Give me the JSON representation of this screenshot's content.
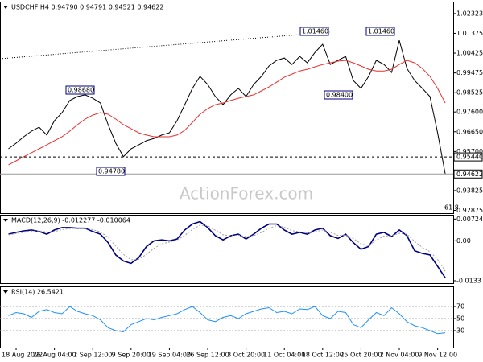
{
  "chart_data": [
    {
      "type": "line",
      "title": "USDCHF,H4 0.94790 0.94791 0.94521 0.94622",
      "ylim": [
        0.9274,
        1.0286
      ],
      "yticks": [
        1.02323,
        1.01375,
        1.00425,
        0.99475,
        0.98525,
        {
          "value": 0.976,
          "label": "0.97600"
        },
        {
          "value": 0.9665,
          "label": "0.96650"
        },
        {
          "value": 0.957,
          "label": "0.95700"
        },
        0.93825,
        0.92875
      ],
      "price_lines": [
        {
          "value": 0.9544,
          "label": "0.95440"
        },
        {
          "value": 0.94622,
          "label": "0.94622"
        }
      ],
      "annotations": [
        "1.01460",
        "1.01460",
        "0.98680",
        "0.98400",
        "0.94780",
        "61.8",
        "ActionForex.com"
      ],
      "series": [
        {
          "color": "#000000",
          "values": [
            0.9583,
            0.961,
            0.9641,
            0.9668,
            0.9687,
            0.9649,
            0.9718,
            0.9757,
            0.9815,
            0.9834,
            0.9842,
            0.9826,
            0.9803,
            0.9699,
            0.961,
            0.9545,
            0.9583,
            0.9602,
            0.9622,
            0.9633,
            0.9649,
            0.966,
            0.9718,
            0.9795,
            0.9873,
            0.9931,
            0.9892,
            0.9834,
            0.9795,
            0.9842,
            0.9873,
            0.9834,
            0.9892,
            0.9931,
            0.9981,
            1.0008,
            1.0019,
            0.9988,
            1.0027,
            0.9996,
            1.0046,
            1.0085,
            0.9988,
            1.0008,
            1.0027,
            0.9911,
            0.9873,
            0.9931,
            1.0008,
            0.9988,
            0.995,
            1.0104,
            0.9969,
            0.9911,
            0.9873,
            0.9834,
            0.966,
            0.9462
          ]
        },
        {
          "color": "#e8302f",
          "values": [
            0.9506,
            0.9525,
            0.9545,
            0.9564,
            0.9583,
            0.9602,
            0.9622,
            0.9641,
            0.9668,
            0.9699,
            0.9726,
            0.9745,
            0.9757,
            0.9749,
            0.9726,
            0.9699,
            0.968,
            0.966,
            0.9649,
            0.9641,
            0.9641,
            0.9641,
            0.9649,
            0.9672,
            0.971,
            0.9749,
            0.9776,
            0.9795,
            0.9803,
            0.9815,
            0.9826,
            0.9834,
            0.9842,
            0.9861,
            0.988,
            0.9903,
            0.9927,
            0.9942,
            0.9957,
            0.9965,
            0.9977,
            0.9988,
            0.9996,
            1.0004,
            1.0008,
            0.9996,
            0.9981,
            0.9965,
            0.9957,
            0.9957,
            0.9965,
            0.9988,
            1.0008,
            0.9996,
            0.9969,
            0.9931,
            0.9873,
            0.9803
          ]
        }
      ]
    },
    {
      "type": "line",
      "title": "MACD(12,26,9) -0.012277 -0.010064",
      "ylim": [
        -0.0141,
        0.0084
      ],
      "yticks": [
        0.00724,
        {
          "value": 0,
          "label": "0.00"
        },
        -0.0133
      ],
      "series": [
        {
          "color": "#000080",
          "values": [
            0.0022,
            0.0028,
            0.0033,
            0.0036,
            0.0031,
            0.0022,
            0.0036,
            0.0044,
            0.0044,
            0.0042,
            0.0042,
            0.0031,
            0.0022,
            -0.0006,
            -0.0047,
            -0.0067,
            -0.0075,
            -0.0056,
            -0.0019,
            0,
            0.0003,
            0,
            0.0006,
            0.0036,
            0.0056,
            0.0064,
            0.0044,
            0.0017,
            0.0003,
            0.0017,
            0.0022,
            0.0006,
            0.0022,
            0.0042,
            0.0056,
            0.0056,
            0.0036,
            0.0022,
            0.0028,
            0.0022,
            0.0036,
            0.0042,
            0.0017,
            0.0008,
            0.0022,
            -0.0006,
            -0.0028,
            -0.0019,
            0.0022,
            0.0028,
            0.0014,
            0.0036,
            0.0017,
            -0.0033,
            -0.0042,
            -0.0047,
            -0.0085,
            -0.0123
          ]
        },
        {
          "color": "#a0a0a0",
          "dotted": true,
          "values": [
            0.002,
            0.0024,
            0.0028,
            0.0032,
            0.0033,
            0.0029,
            0.0031,
            0.0037,
            0.0041,
            0.0042,
            0.0042,
            0.0037,
            0.003,
            0.0012,
            -0.0018,
            -0.0045,
            -0.0063,
            -0.0062,
            -0.0045,
            -0.0025,
            -0.001,
            -0.0004,
            0.0002,
            0.0018,
            0.0038,
            0.0052,
            0.005,
            0.0035,
            0.002,
            0.0017,
            0.0019,
            0.0014,
            0.0017,
            0.0028,
            0.0042,
            0.005,
            0.0045,
            0.0034,
            0.003,
            0.0026,
            0.003,
            0.0036,
            0.0028,
            0.0018,
            0.0019,
            0.0008,
            -0.001,
            -0.0016,
            0.0002,
            0.0016,
            0.0016,
            0.0025,
            0.0022,
            -0.0002,
            -0.0022,
            -0.0036,
            -0.0062,
            -0.0101
          ]
        }
      ]
    },
    {
      "type": "line",
      "title": "RSI(14) 26.5421",
      "ylim": [
        2,
        102
      ],
      "yticks": [
        70,
        50,
        30
      ],
      "categories": [
        null,
        "18 Aug 2022",
        null,
        null,
        null,
        null,
        "26 Aug 04:00",
        null,
        null,
        null,
        null,
        "2 Sep 12:00",
        null,
        null,
        null,
        null,
        "9 Sep 20:00",
        null,
        null,
        null,
        null,
        "19 Sep 04:00",
        null,
        null,
        null,
        null,
        "26 Sep 12:00",
        null,
        null,
        null,
        null,
        "3 Oct 20:00",
        null,
        null,
        null,
        null,
        "11 Oct 04:00",
        null,
        null,
        null,
        null,
        "18 Oct 12:00",
        null,
        null,
        null,
        null,
        "25 Oct 20:00",
        null,
        null,
        null,
        null,
        "2 Nov 04:00",
        null,
        null,
        null,
        null,
        "9 Nov 12:00",
        null
      ],
      "series": [
        {
          "color": "#1e90ff",
          "values": [
            55,
            60,
            58,
            52,
            62,
            65,
            60,
            58,
            70,
            62,
            58,
            55,
            48,
            35,
            30,
            28,
            40,
            45,
            50,
            48,
            52,
            55,
            58,
            65,
            70,
            60,
            48,
            45,
            52,
            55,
            50,
            58,
            62,
            66,
            68,
            60,
            62,
            58,
            66,
            65,
            70,
            55,
            50,
            62,
            60,
            40,
            35,
            48,
            60,
            55,
            68,
            58,
            45,
            38,
            35,
            30,
            25,
            26.5421
          ]
        }
      ]
    }
  ]
}
